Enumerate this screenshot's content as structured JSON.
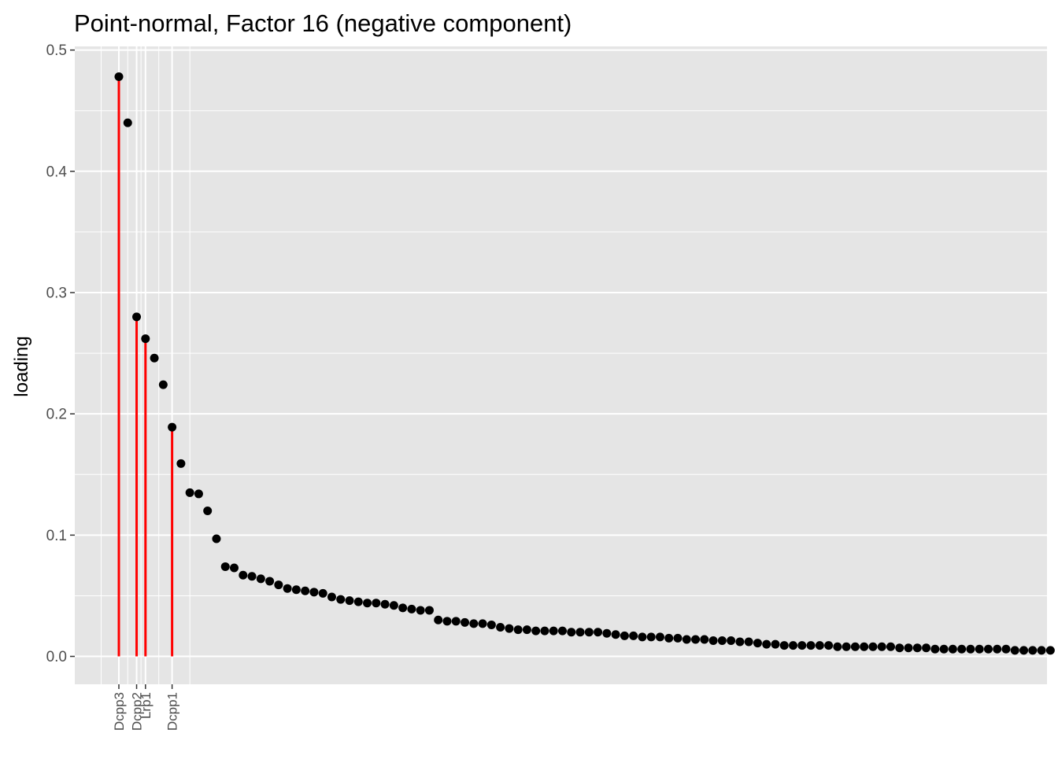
{
  "chart_data": {
    "type": "scatter",
    "title": "Point-normal, Factor 16 (negative component)",
    "xlabel": "",
    "ylabel": "loading",
    "ylim": [
      -0.023,
      0.503
    ],
    "xlim": [
      0.5,
      100.5
    ],
    "y_ticks": [
      0.0,
      0.1,
      0.2,
      0.3,
      0.4,
      0.5
    ],
    "y_tick_labels": [
      "0.0",
      "0.1",
      "0.2",
      "0.3",
      "0.4",
      "0.5"
    ],
    "grid": true,
    "panel_background": "#e5e5e5",
    "grid_color": "#ffffff",
    "point_color": "#000000",
    "highlight_color": "#ff0000",
    "labeled_points": [
      {
        "label": "Dcpp3",
        "x": 1,
        "y": 0.478
      },
      {
        "label": "Dcpp2",
        "x": 3,
        "y": 0.28
      },
      {
        "label": "Lrp1",
        "x": 4,
        "y": 0.262
      },
      {
        "label": "Dcpp1",
        "x": 7,
        "y": 0.189
      }
    ],
    "series": [
      {
        "values": [
          0.478,
          0.44,
          0.28,
          0.262,
          0.246,
          0.224,
          0.189,
          0.159,
          0.135,
          0.134,
          0.12,
          0.097,
          0.074,
          0.073,
          0.067,
          0.066,
          0.064,
          0.062,
          0.059,
          0.056,
          0.055,
          0.054,
          0.053,
          0.052,
          0.049,
          0.047,
          0.046,
          0.045,
          0.044,
          0.044,
          0.043,
          0.042,
          0.04,
          0.039,
          0.038,
          0.038,
          0.03,
          0.029,
          0.029,
          0.028,
          0.027,
          0.027,
          0.026,
          0.024,
          0.023,
          0.022,
          0.022,
          0.021,
          0.021,
          0.021,
          0.021,
          0.02,
          0.02,
          0.02,
          0.02,
          0.019,
          0.018,
          0.017,
          0.017,
          0.016,
          0.016,
          0.016,
          0.015,
          0.015,
          0.014,
          0.014,
          0.014,
          0.013,
          0.013,
          0.013,
          0.012,
          0.012,
          0.011,
          0.01,
          0.01,
          0.009,
          0.009,
          0.009,
          0.009,
          0.009,
          0.009,
          0.008,
          0.008,
          0.008,
          0.008,
          0.008,
          0.008,
          0.008,
          0.007,
          0.007,
          0.007,
          0.007,
          0.006,
          0.006,
          0.006,
          0.006,
          0.006,
          0.006,
          0.006,
          0.006,
          0.006,
          0.005,
          0.005,
          0.005,
          0.005,
          0.005
        ]
      }
    ]
  }
}
